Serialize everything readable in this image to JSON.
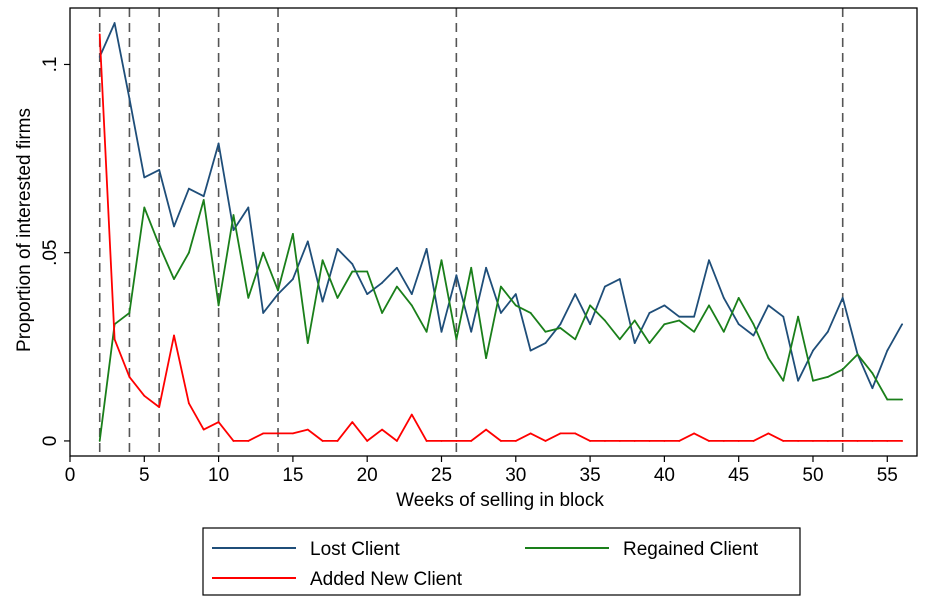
{
  "chart_data": {
    "type": "line",
    "xlabel": "Weeks of selling in block",
    "ylabel": "Proportion of interested firms",
    "xlim": [
      0,
      57
    ],
    "ylim": [
      -0.004,
      0.115
    ],
    "xticks": [
      0,
      5,
      10,
      15,
      20,
      25,
      30,
      35,
      40,
      45,
      50,
      55
    ],
    "xtick_labels": [
      "0",
      "5",
      "10",
      "15",
      "20",
      "25",
      "30",
      "35",
      "40",
      "45",
      "50",
      "55"
    ],
    "yticks": [
      0,
      0.05,
      0.1
    ],
    "ytick_labels": [
      "0",
      ".05",
      ".1"
    ],
    "vlines": [
      2,
      4,
      6,
      10,
      14,
      26,
      52
    ],
    "grid": false,
    "legend_position": "bottom",
    "series": [
      {
        "name": "Lost Client",
        "color": "#1f4e79",
        "x": [
          2,
          3,
          4,
          5,
          6,
          7,
          8,
          9,
          10,
          11,
          12,
          13,
          14,
          15,
          16,
          17,
          18,
          19,
          20,
          21,
          22,
          23,
          24,
          25,
          26,
          27,
          28,
          29,
          30,
          31,
          32,
          33,
          34,
          35,
          36,
          37,
          38,
          39,
          40,
          41,
          42,
          43,
          44,
          45,
          46,
          47,
          48,
          49,
          50,
          51,
          52,
          53,
          54,
          55,
          56
        ],
        "values": [
          0.102,
          0.111,
          0.091,
          0.07,
          0.072,
          0.057,
          0.067,
          0.065,
          0.079,
          0.056,
          0.062,
          0.034,
          0.039,
          0.043,
          0.053,
          0.037,
          0.051,
          0.047,
          0.039,
          0.042,
          0.046,
          0.039,
          0.051,
          0.029,
          0.044,
          0.029,
          0.046,
          0.034,
          0.039,
          0.024,
          0.026,
          0.031,
          0.039,
          0.031,
          0.041,
          0.043,
          0.026,
          0.034,
          0.036,
          0.033,
          0.033,
          0.048,
          0.038,
          0.031,
          0.028,
          0.036,
          0.033,
          0.016,
          0.024,
          0.029,
          0.038,
          0.023,
          0.014,
          0.024,
          0.031
        ]
      },
      {
        "name": "Regained Client",
        "color": "#1a7f1a",
        "x": [
          2,
          3,
          4,
          5,
          6,
          7,
          8,
          9,
          10,
          11,
          12,
          13,
          14,
          15,
          16,
          17,
          18,
          19,
          20,
          21,
          22,
          23,
          24,
          25,
          26,
          27,
          28,
          29,
          30,
          31,
          32,
          33,
          34,
          35,
          36,
          37,
          38,
          39,
          40,
          41,
          42,
          43,
          44,
          45,
          46,
          47,
          48,
          49,
          50,
          51,
          52,
          53,
          54,
          55,
          56
        ],
        "values": [
          0.0,
          0.031,
          0.034,
          0.062,
          0.052,
          0.043,
          0.05,
          0.064,
          0.036,
          0.06,
          0.038,
          0.05,
          0.04,
          0.055,
          0.026,
          0.048,
          0.038,
          0.045,
          0.045,
          0.034,
          0.041,
          0.036,
          0.029,
          0.048,
          0.027,
          0.046,
          0.022,
          0.041,
          0.036,
          0.034,
          0.029,
          0.03,
          0.027,
          0.036,
          0.032,
          0.027,
          0.032,
          0.026,
          0.031,
          0.032,
          0.029,
          0.036,
          0.029,
          0.038,
          0.031,
          0.022,
          0.016,
          0.033,
          0.016,
          0.017,
          0.019,
          0.023,
          0.018,
          0.011,
          0.011
        ]
      },
      {
        "name": "Added New Client",
        "color": "#ff0000",
        "x": [
          2,
          3,
          4,
          5,
          6,
          7,
          8,
          9,
          10,
          11,
          12,
          13,
          14,
          15,
          16,
          17,
          18,
          19,
          20,
          21,
          22,
          23,
          24,
          25,
          26,
          27,
          28,
          29,
          30,
          31,
          32,
          33,
          34,
          35,
          36,
          37,
          38,
          39,
          40,
          41,
          42,
          43,
          44,
          45,
          46,
          47,
          48,
          49,
          50,
          51,
          52,
          53,
          54,
          55,
          56
        ],
        "values": [
          0.108,
          0.027,
          0.017,
          0.012,
          0.009,
          0.028,
          0.01,
          0.003,
          0.005,
          0.0,
          0.0,
          0.002,
          0.002,
          0.002,
          0.003,
          0.0,
          0.0,
          0.005,
          0.0,
          0.003,
          0.0,
          0.007,
          0.0,
          0.0,
          0.0,
          0.0,
          0.003,
          0.0,
          0.0,
          0.002,
          0.0,
          0.002,
          0.002,
          0.0,
          0.0,
          0.0,
          0.0,
          0.0,
          0.0,
          0.0,
          0.002,
          0.0,
          0.0,
          0.0,
          0.0,
          0.002,
          0.0,
          0.0,
          0.0,
          0.0,
          0.0,
          0.0,
          0.0,
          0.0,
          0.0
        ]
      }
    ]
  }
}
